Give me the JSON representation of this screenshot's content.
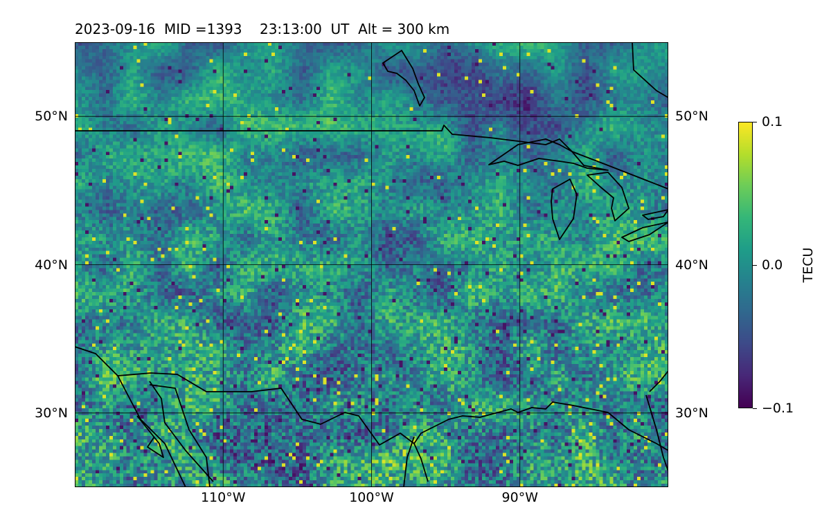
{
  "title": {
    "date": "2023-09-16",
    "mid": "MID =1393",
    "time": "23:13:00  UT",
    "alt": "Alt = 300 km"
  },
  "map": {
    "lon_range": [
      -120,
      -80
    ],
    "lat_range": [
      25,
      55
    ],
    "gridlines": true,
    "features": [
      "coastlines",
      "country-borders",
      "great-lakes"
    ]
  },
  "lat_ticks": [
    {
      "value": 30,
      "label": "30°N"
    },
    {
      "value": 40,
      "label": "40°N"
    },
    {
      "value": 50,
      "label": "50°N"
    }
  ],
  "lon_ticks": [
    {
      "value": -110,
      "label": "110°W"
    },
    {
      "value": -100,
      "label": "100°W"
    },
    {
      "value": -90,
      "label": "90°W"
    }
  ],
  "colorbar": {
    "label": "TECU",
    "colormap": "viridis",
    "range": [
      -0.1,
      0.1
    ],
    "ticks": [
      {
        "value": 0.1,
        "label": "0.1"
      },
      {
        "value": 0.0,
        "label": "0.0"
      },
      {
        "value": -0.1,
        "label": "−0.1"
      }
    ]
  },
  "colors": {
    "background_field": "#2a8a8c",
    "low": "#440154",
    "high": "#fde725",
    "lines": "#000000"
  }
}
